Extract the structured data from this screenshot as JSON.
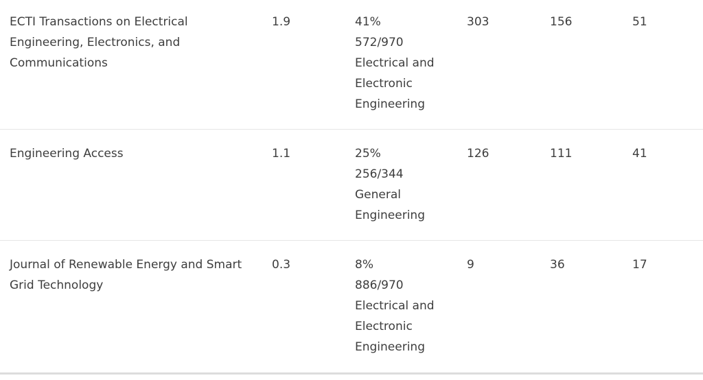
{
  "rows": [
    {
      "title_lines": [
        "ECTI Transactions on Electrical",
        "Engineering, Electronics, and",
        "Communications"
      ],
      "score": "1.9",
      "percentile": "41%",
      "rank": "572/970",
      "category_lines": [
        "Electrical and",
        "Electronic",
        "Engineering"
      ],
      "col_a": "303",
      "col_b": "156",
      "col_c": "51"
    },
    {
      "title_lines": [
        "Engineering Access"
      ],
      "score": "1.1",
      "percentile": "25%",
      "rank": "256/344",
      "category_lines": [
        "General",
        "Engineering"
      ],
      "col_a": "126",
      "col_b": "111",
      "col_c": "41"
    },
    {
      "title_lines": [
        "Journal of Renewable Energy and Smart",
        "Grid Technology"
      ],
      "score": "0.3",
      "percentile": "8%",
      "rank": "886/970",
      "category_lines": [
        "Electrical and",
        "Electronic",
        "Engineering"
      ],
      "col_a": "9",
      "col_b": "36",
      "col_c": "17"
    }
  ]
}
